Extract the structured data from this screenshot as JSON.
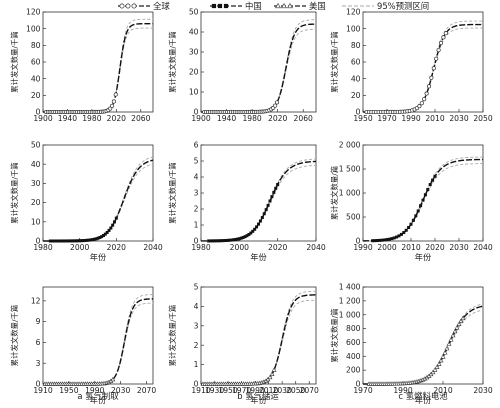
{
  "legend": {
    "items": [
      {
        "label": "全球",
        "marker": "circle",
        "color": "#555555"
      },
      {
        "label": "中国",
        "marker": "square",
        "color": "#111111"
      },
      {
        "label": "美国",
        "marker": "triangle",
        "color": "#555555"
      },
      {
        "label": "95%预测区间",
        "marker": "dashed",
        "color": "#aaaaaa"
      }
    ]
  },
  "captions": [
    "a 氢气制取",
    "b 氢气储运",
    "c 氢燃料电池"
  ],
  "chart_data": [
    {
      "id": "a-global",
      "type": "line",
      "series_name": "全球",
      "marker": "circle",
      "xlabel": "",
      "ylabel": "累计发文数量/千篇",
      "xlim": [
        1900,
        2080
      ],
      "xticks": [
        1900,
        1940,
        1980,
        2020,
        2060
      ],
      "ylim": [
        0,
        120
      ],
      "yticks": [
        0,
        20,
        40,
        60,
        80,
        100,
        120
      ],
      "logistic": {
        "K": 106,
        "r": 0.2,
        "t0": 2026
      },
      "band": {
        "upper": 1.05,
        "lower": 0.95
      },
      "observed_range": [
        1905,
        2020
      ],
      "observed_step": 3
    },
    {
      "id": "b-global",
      "type": "line",
      "series_name": "全球",
      "marker": "circle",
      "xlabel": "",
      "ylabel": "累计发文数量/千篇",
      "xlim": [
        1900,
        2080
      ],
      "xticks": [
        1900,
        1940,
        1980,
        2020,
        2060
      ],
      "ylim": [
        0,
        50
      ],
      "yticks": [
        0,
        10,
        20,
        30,
        40,
        50
      ],
      "logistic": {
        "K": 44,
        "r": 0.15,
        "t0": 2033
      },
      "band": {
        "upper": 1.05,
        "lower": 0.94
      },
      "observed_range": [
        1905,
        2020
      ],
      "observed_step": 3
    },
    {
      "id": "c-global",
      "type": "line",
      "series_name": "全球",
      "marker": "circle",
      "xlabel": "",
      "ylabel": "累计发文数量/千篇",
      "xlim": [
        1950,
        2050
      ],
      "xticks": [
        1950,
        1970,
        1990,
        2010,
        2030,
        2050
      ],
      "ylim": [
        0,
        120
      ],
      "yticks": [
        0,
        20,
        40,
        60,
        80,
        100,
        120
      ],
      "logistic": {
        "K": 105,
        "r": 0.22,
        "t0": 2009
      },
      "band": {
        "upper": 1.04,
        "lower": 0.96
      },
      "observed_range": [
        1953,
        2020
      ],
      "observed_step": 2
    },
    {
      "id": "a-china",
      "type": "line",
      "series_name": "中国",
      "marker": "square",
      "xlabel": "年份",
      "ylabel": "累计发文数量/千篇",
      "xlim": [
        1980,
        2040
      ],
      "xticks": [
        1980,
        2000,
        2020,
        2040
      ],
      "ylim": [
        0,
        50
      ],
      "yticks": [
        0,
        10,
        20,
        30,
        40,
        50
      ],
      "logistic": {
        "K": 43,
        "r": 0.24,
        "t0": 2024
      },
      "band": {
        "upper": 1.04,
        "lower": 0.95
      },
      "observed_range": [
        1984,
        2020
      ],
      "observed_step": 1
    },
    {
      "id": "b-china",
      "type": "line",
      "series_name": "中国",
      "marker": "square",
      "xlabel": "年份",
      "ylabel": "累计发文数量/千篇",
      "xlim": [
        1980,
        2040
      ],
      "xticks": [
        1980,
        2000,
        2020,
        2040
      ],
      "ylim": [
        0,
        6
      ],
      "yticks": [
        0,
        1,
        2,
        3,
        4,
        5,
        6
      ],
      "logistic": {
        "K": 5.0,
        "r": 0.22,
        "t0": 2016
      },
      "band": {
        "upper": 1.03,
        "lower": 0.95
      },
      "observed_range": [
        1984,
        2020
      ],
      "observed_step": 1
    },
    {
      "id": "c-china",
      "type": "line",
      "series_name": "中国",
      "marker": "square",
      "xlabel": "年份",
      "ylabel": "累计发文数量/篇",
      "xlim": [
        1990,
        2040
      ],
      "xticks": [
        1990,
        2000,
        2010,
        2020,
        2030,
        2040
      ],
      "ylim": [
        0,
        2000
      ],
      "yticks": [
        0,
        500,
        1000,
        1500,
        2000
      ],
      "ytick_labels": [
        "0",
        "500",
        "1 000",
        "1 500",
        "2 000"
      ],
      "logistic": {
        "K": 1700,
        "r": 0.27,
        "t0": 2015
      },
      "band": {
        "upper": 1.03,
        "lower": 0.95
      },
      "observed_range": [
        1994,
        2020
      ],
      "observed_step": 1
    },
    {
      "id": "a-us",
      "type": "line",
      "series_name": "美国",
      "marker": "triangle",
      "xlabel": "年份",
      "ylabel": "累计发文数量/千篇",
      "xlim": [
        1910,
        2080
      ],
      "xticks": [
        1910,
        1950,
        1990,
        2030,
        2070
      ],
      "ylim": [
        0,
        14
      ],
      "yticks": [
        0,
        3,
        6,
        9,
        12
      ],
      "logistic": {
        "K": 12.3,
        "r": 0.16,
        "t0": 2036
      },
      "band": {
        "upper": 1.05,
        "lower": 0.95
      },
      "observed_range": [
        1913,
        2020
      ],
      "observed_step": 3
    },
    {
      "id": "b-us",
      "type": "line",
      "series_name": "美国",
      "marker": "triangle",
      "xlabel": "年份",
      "ylabel": "累计发文数量/千篇",
      "xlim": [
        1910,
        2080
      ],
      "xticks": [
        1910,
        1930,
        1950,
        1970,
        1990,
        2010,
        2030,
        2050,
        2070
      ],
      "ylim": [
        0,
        5
      ],
      "yticks": [
        0,
        1,
        2,
        3,
        4,
        5
      ],
      "logistic": {
        "K": 4.6,
        "r": 0.14,
        "t0": 2030
      },
      "band": {
        "upper": 1.04,
        "lower": 0.94
      },
      "observed_range": [
        1913,
        2020
      ],
      "observed_step": 3
    },
    {
      "id": "c-us",
      "type": "line",
      "series_name": "美国",
      "marker": "triangle",
      "xlabel": "年份",
      "ylabel": "累计发文数量/篇",
      "xlim": [
        1970,
        2030
      ],
      "xticks": [
        1970,
        1990,
        2010,
        2030
      ],
      "ylim": [
        0,
        1400
      ],
      "yticks": [
        0,
        200,
        400,
        600,
        800,
        1000,
        1200,
        1400
      ],
      "ytick_labels": [
        "0",
        "200",
        "400",
        "600",
        "800",
        "1 000",
        "1 200",
        "1 400"
      ],
      "logistic": {
        "K": 1150,
        "r": 0.22,
        "t0": 2013
      },
      "band": {
        "upper": 1.03,
        "lower": 0.95
      },
      "observed_range": [
        1973,
        2020
      ],
      "observed_step": 1
    }
  ]
}
